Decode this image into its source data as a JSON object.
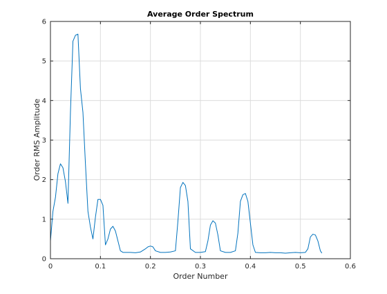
{
  "chart_data": {
    "type": "line",
    "title": "Average Order Spectrum",
    "xlabel": "Order Number",
    "ylabel": "Order RMS Amplitude",
    "xlim": [
      0,
      0.6
    ],
    "ylim": [
      0,
      6
    ],
    "xticks": [
      0,
      0.1,
      0.2,
      0.3,
      0.4,
      0.5,
      0.6
    ],
    "xtick_labels": [
      "0",
      "0.1",
      "0.2",
      "0.3",
      "0.4",
      "0.5",
      "0.6"
    ],
    "yticks": [
      0,
      1,
      2,
      3,
      4,
      5,
      6
    ],
    "ytick_labels": [
      "0",
      "1",
      "2",
      "3",
      "4",
      "5",
      "6"
    ],
    "grid": true,
    "line_color": "#0072BD",
    "series": [
      {
        "x": [
          0,
          0.005,
          0.01,
          0.015,
          0.02,
          0.025,
          0.03,
          0.035,
          0.04,
          0.045,
          0.05,
          0.055,
          0.06,
          0.065,
          0.07,
          0.075,
          0.08,
          0.085,
          0.09,
          0.095,
          0.1,
          0.105,
          0.11,
          0.115,
          0.12,
          0.125,
          0.13,
          0.135,
          0.14,
          0.145,
          0.15,
          0.16,
          0.17,
          0.18,
          0.19,
          0.195,
          0.2,
          0.205,
          0.21,
          0.22,
          0.23,
          0.24,
          0.25,
          0.255,
          0.26,
          0.265,
          0.27,
          0.275,
          0.28,
          0.29,
          0.3,
          0.31,
          0.315,
          0.32,
          0.325,
          0.33,
          0.335,
          0.34,
          0.35,
          0.36,
          0.37,
          0.375,
          0.38,
          0.385,
          0.39,
          0.395,
          0.4,
          0.405,
          0.41,
          0.42,
          0.43,
          0.44,
          0.45,
          0.46,
          0.47,
          0.48,
          0.49,
          0.5,
          0.51,
          0.515,
          0.52,
          0.525,
          0.53,
          0.535,
          0.54,
          0.543
        ],
        "y": [
          0.45,
          1.2,
          1.55,
          2.15,
          2.4,
          2.3,
          1.95,
          1.4,
          3.7,
          5.5,
          5.65,
          5.68,
          4.3,
          3.7,
          2.4,
          1.2,
          0.8,
          0.5,
          1.05,
          1.5,
          1.5,
          1.35,
          0.35,
          0.5,
          0.75,
          0.82,
          0.7,
          0.45,
          0.2,
          0.16,
          0.16,
          0.16,
          0.15,
          0.17,
          0.25,
          0.3,
          0.32,
          0.3,
          0.2,
          0.16,
          0.16,
          0.17,
          0.2,
          0.95,
          1.8,
          1.93,
          1.85,
          1.45,
          0.25,
          0.16,
          0.16,
          0.18,
          0.45,
          0.85,
          0.96,
          0.9,
          0.6,
          0.2,
          0.16,
          0.16,
          0.2,
          0.65,
          1.45,
          1.62,
          1.65,
          1.45,
          0.9,
          0.35,
          0.16,
          0.15,
          0.15,
          0.16,
          0.15,
          0.15,
          0.14,
          0.15,
          0.16,
          0.15,
          0.16,
          0.25,
          0.55,
          0.62,
          0.6,
          0.45,
          0.2,
          0.14
        ]
      }
    ]
  }
}
